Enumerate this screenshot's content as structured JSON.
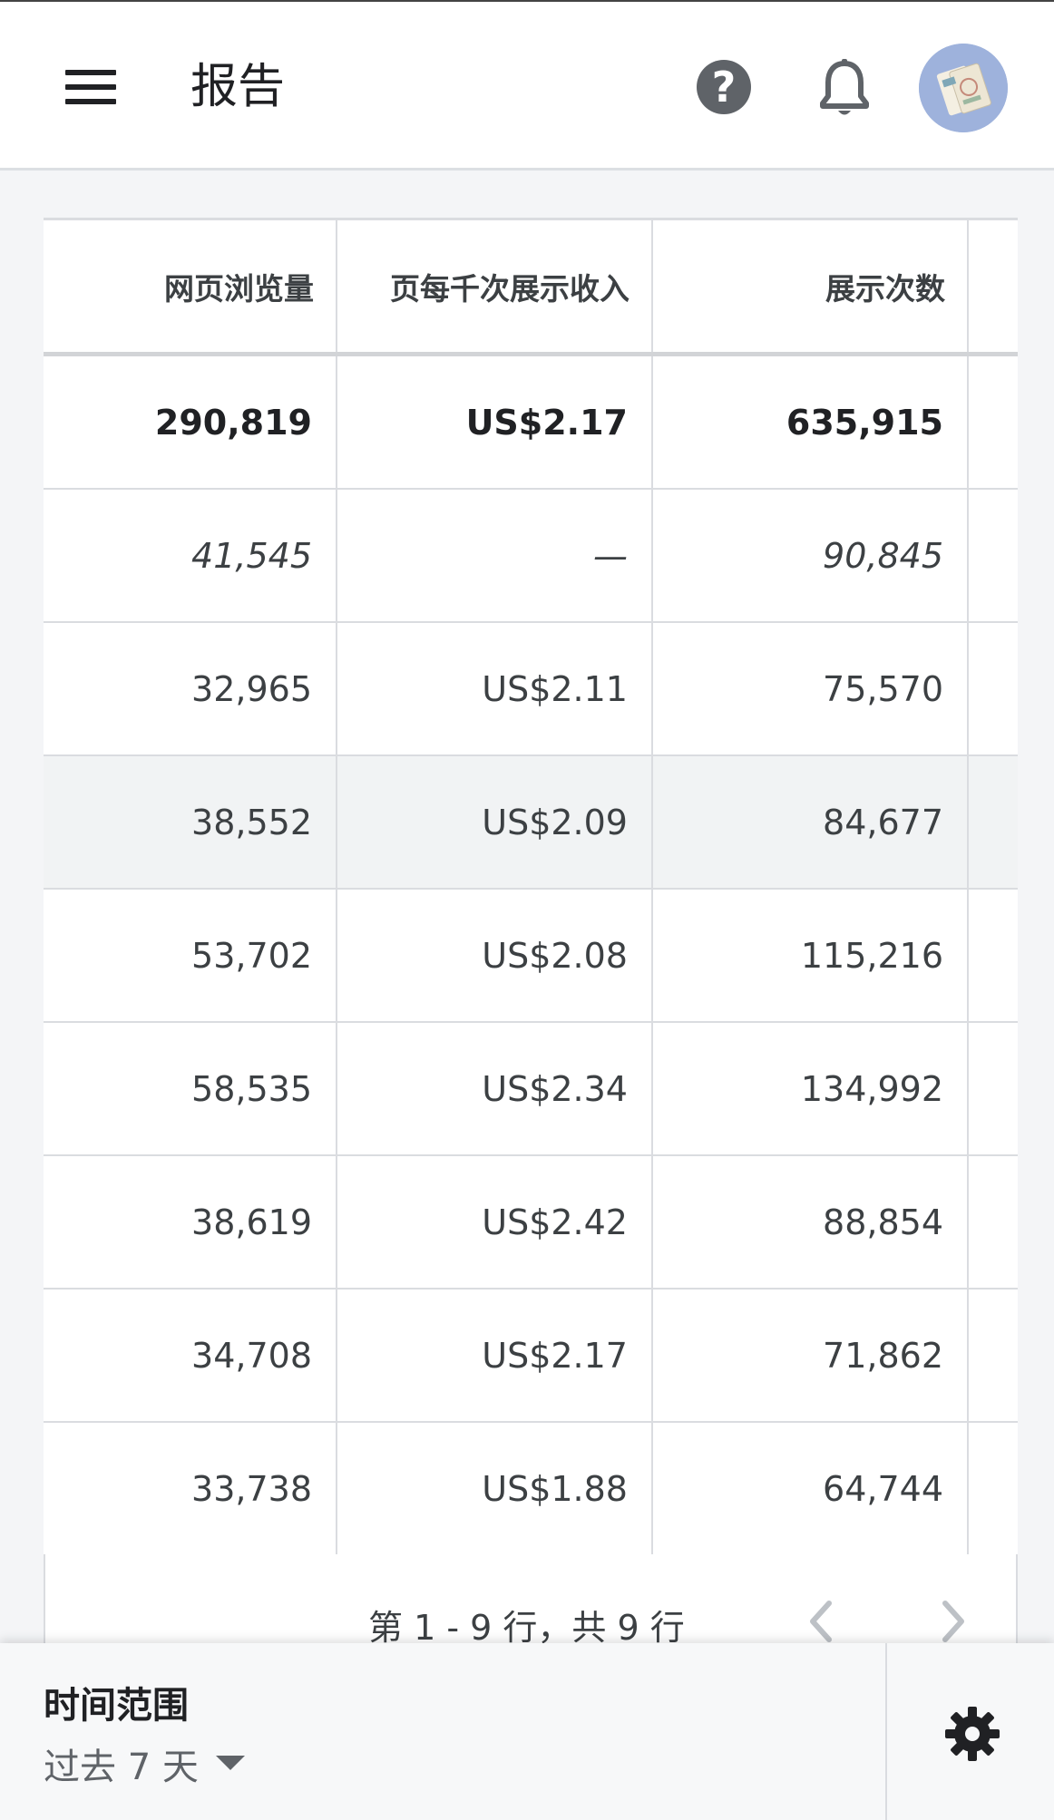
{
  "header": {
    "title": "报告"
  },
  "table": {
    "columns": [
      "网页浏览量",
      "页每千次展示收入",
      "展示次数"
    ],
    "total": {
      "pageviews": "290,819",
      "rpm": "US$2.17",
      "impressions": "635,915"
    },
    "rows": [
      {
        "pageviews": "41,545",
        "rpm": "—",
        "impressions": "90,845"
      },
      {
        "pageviews": "32,965",
        "rpm": "US$2.11",
        "impressions": "75,570"
      },
      {
        "pageviews": "38,552",
        "rpm": "US$2.09",
        "impressions": "84,677"
      },
      {
        "pageviews": "53,702",
        "rpm": "US$2.08",
        "impressions": "115,216"
      },
      {
        "pageviews": "58,535",
        "rpm": "US$2.34",
        "impressions": "134,992"
      },
      {
        "pageviews": "38,619",
        "rpm": "US$2.42",
        "impressions": "88,854"
      },
      {
        "pageviews": "34,708",
        "rpm": "US$2.17",
        "impressions": "71,862"
      },
      {
        "pageviews": "33,738",
        "rpm": "US$1.88",
        "impressions": "64,744"
      }
    ]
  },
  "pagination": {
    "info": "第 1 - 9 行，共 9 行"
  },
  "footer": {
    "range_label": "时间范围",
    "range_value": "过去 7 天"
  },
  "icons": {
    "menu": "menu-icon",
    "help": "help-icon",
    "bell": "bell-icon",
    "prev": "chevron-left-icon",
    "next": "chevron-right-icon",
    "dropdown": "dropdown-arrow-icon",
    "settings": "gear-icon"
  },
  "colors": {
    "text": "#3c4043",
    "border": "#dadce0",
    "icon": "#5f6368"
  }
}
